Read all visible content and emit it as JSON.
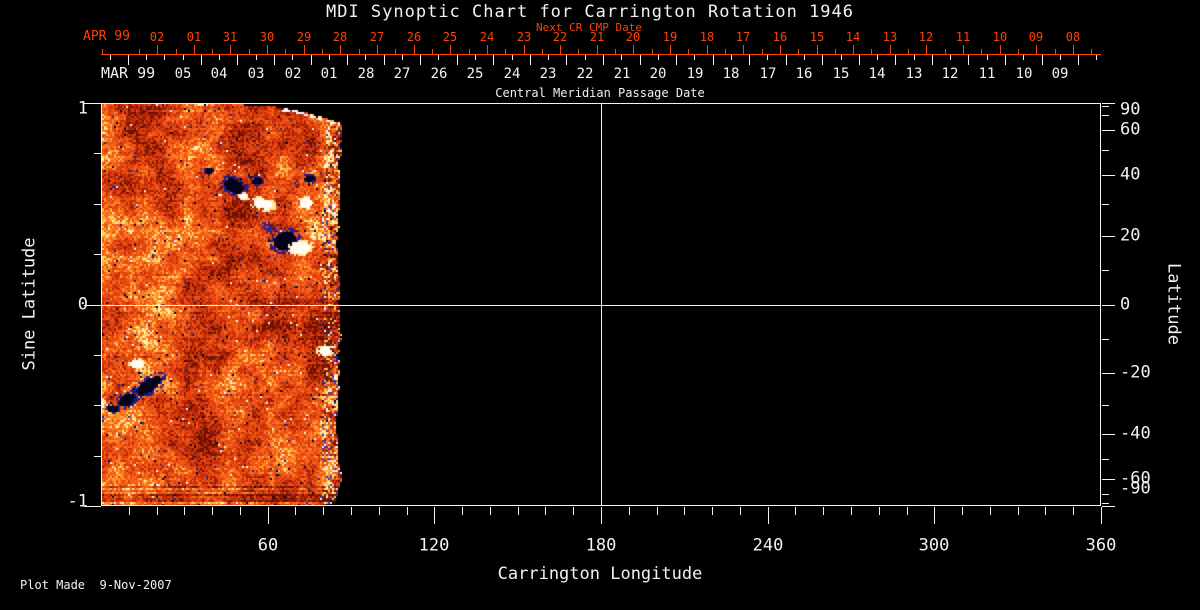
{
  "colors": {
    "background": "#000000",
    "foreground": "#f2f2f2",
    "accent_red": "#ff4200"
  },
  "footer": {
    "text": "Plot Made  9-Nov-2007"
  },
  "chart_data": {
    "type": "heatmap",
    "title": "MDI Synoptic Chart for Carrington Rotation 1946",
    "xlabel": "Carrington Longitude",
    "ylabel_left": "Sine Latitude",
    "ylabel_right": "Latitude",
    "xlim": [
      0,
      360
    ],
    "ylim_sine": [
      -1,
      1
    ],
    "x_major_ticks": [
      60,
      120,
      180,
      240,
      300,
      360
    ],
    "x_minor_step_deg": 10,
    "y_left_major_ticks": [
      1,
      0,
      -1
    ],
    "y_left_minor_ticks": [
      0.75,
      0.5,
      0.25,
      -0.25,
      -0.5,
      -0.75
    ],
    "y_right_major_ticks": [
      90,
      60,
      40,
      20,
      0,
      -20,
      -40,
      -60,
      -90
    ],
    "y_right_minor_ticks": [
      80,
      70,
      50,
      30,
      10,
      -10,
      -30,
      -50,
      -70,
      -80
    ],
    "crosshair": {
      "longitude_deg": 180,
      "sine_latitude": 0
    },
    "top_axis_next_cr": {
      "label": "Next CR CMP Date",
      "month": "APR 99",
      "days": [
        "02",
        "01",
        "31",
        "30",
        "29",
        "28",
        "27",
        "26",
        "25",
        "24",
        "23",
        "22",
        "21",
        "20",
        "19",
        "18",
        "17",
        "16",
        "15",
        "14",
        "13",
        "12",
        "11",
        "10",
        "09",
        "08"
      ]
    },
    "cmp_axis": {
      "label": "Central Meridian Passage Date",
      "month": "MAR 99",
      "days": [
        "05",
        "04",
        "03",
        "02",
        "01",
        "28",
        "27",
        "26",
        "25",
        "24",
        "23",
        "22",
        "21",
        "20",
        "19",
        "18",
        "17",
        "16",
        "15",
        "14",
        "13",
        "12",
        "11",
        "10",
        "09"
      ]
    },
    "data_coverage": {
      "longitude_deg": [
        0,
        85.5
      ],
      "note": "magnetogram pixels only for first ~85 deg of rotation; remainder of chart is empty (black)"
    },
    "magnetogram": {
      "palette": [
        "#6b1202",
        "#9a1e05",
        "#c32c08",
        "#de400e",
        "#ee5316",
        "#f9691d",
        "#ff8b28",
        "#ffb542",
        "#ffdc70",
        "#fff3b8"
      ],
      "negative_polarity_colors": [
        "#03031a",
        "#1e1e90",
        "#2525a8"
      ],
      "positive_polarity_colors": [
        "#fffdf2",
        "#ffe9a2"
      ],
      "features": [
        {
          "type": "dark",
          "lon": 47.5,
          "slat": 0.593,
          "rlon": 5.4,
          "rslat": 0.05,
          "rot": 25
        },
        {
          "type": "dark",
          "lon": 55.9,
          "slat": 0.617,
          "rlon": 2.9,
          "rslat": 0.025,
          "rot": 0
        },
        {
          "type": "dark",
          "lon": 38.6,
          "slat": 0.667,
          "rlon": 2.2,
          "rslat": 0.02,
          "rot": 0
        },
        {
          "type": "dark",
          "lon": 74.6,
          "slat": 0.628,
          "rlon": 2.5,
          "rslat": 0.025,
          "rot": 0
        },
        {
          "type": "dark",
          "lon": 65.9,
          "slat": 0.32,
          "rlon": 6.1,
          "rslat": 0.065,
          "rot": -15
        },
        {
          "type": "navy",
          "lon": 60.1,
          "slat": 0.39,
          "rlon": 2.9,
          "rslat": 0.025,
          "rot": 30
        },
        {
          "type": "dark",
          "lon": 86.5,
          "slat": -0.25,
          "rlon": 2.9,
          "rslat": 0.035,
          "rot": 0
        },
        {
          "type": "dark",
          "lon": 16.9,
          "slat": -0.399,
          "rlon": 7.6,
          "rslat": 0.045,
          "rot": -35
        },
        {
          "type": "dark",
          "lon": 9.0,
          "slat": -0.469,
          "rlon": 4.7,
          "rslat": 0.04,
          "rot": -30
        },
        {
          "type": "dark",
          "lon": 4.0,
          "slat": -0.513,
          "rlon": 2.9,
          "rslat": 0.025,
          "rot": 0
        },
        {
          "type": "white",
          "lon": 58.0,
          "slat": 0.504,
          "rlon": 5.0,
          "rslat": 0.035,
          "rot": 10
        },
        {
          "type": "white",
          "lon": 51.1,
          "slat": 0.539,
          "rlon": 2.2,
          "rslat": 0.02,
          "rot": 0
        },
        {
          "type": "white",
          "lon": 73.5,
          "slat": 0.509,
          "rlon": 3.2,
          "rslat": 0.035,
          "rot": 0
        },
        {
          "type": "white",
          "lon": 71.3,
          "slat": 0.286,
          "rlon": 4.7,
          "rslat": 0.045,
          "rot": 0
        },
        {
          "type": "white",
          "lon": 80.3,
          "slat": -0.226,
          "rlon": 3.2,
          "rslat": 0.03,
          "rot": 0
        },
        {
          "type": "white",
          "lon": 12.6,
          "slat": -0.29,
          "rlon": 3.2,
          "rslat": 0.03,
          "rot": 0
        },
        {
          "type": "white",
          "lon": -1.6,
          "slat": -0.494,
          "rlon": 3.6,
          "rslat": 0.04,
          "rot": 0
        }
      ],
      "speck_boosts": [
        {
          "type": "navy",
          "lon": 50.5,
          "slat": 0.55,
          "rlon": 23,
          "rslat": 0.27,
          "p": 0.055
        },
        {
          "type": "navy",
          "lon": 66.0,
          "slat": 0.33,
          "rlon": 20,
          "rslat": 0.2,
          "p": 0.05
        },
        {
          "type": "navy",
          "lon": 21.0,
          "slat": -0.44,
          "rlon": 21,
          "rslat": 0.22,
          "p": 0.05
        },
        {
          "type": "navy",
          "lon": 54.0,
          "slat": -0.23,
          "rlon": 29,
          "rslat": 0.27,
          "p": 0.03
        },
        {
          "type": "white",
          "lon": 25.0,
          "slat": -0.24,
          "rlon": 27,
          "rslat": 0.3,
          "p": 0.018
        },
        {
          "type": "white",
          "lon": 28.0,
          "slat": 0.45,
          "rlon": 25,
          "rslat": 0.27,
          "p": 0.015
        }
      ]
    }
  }
}
